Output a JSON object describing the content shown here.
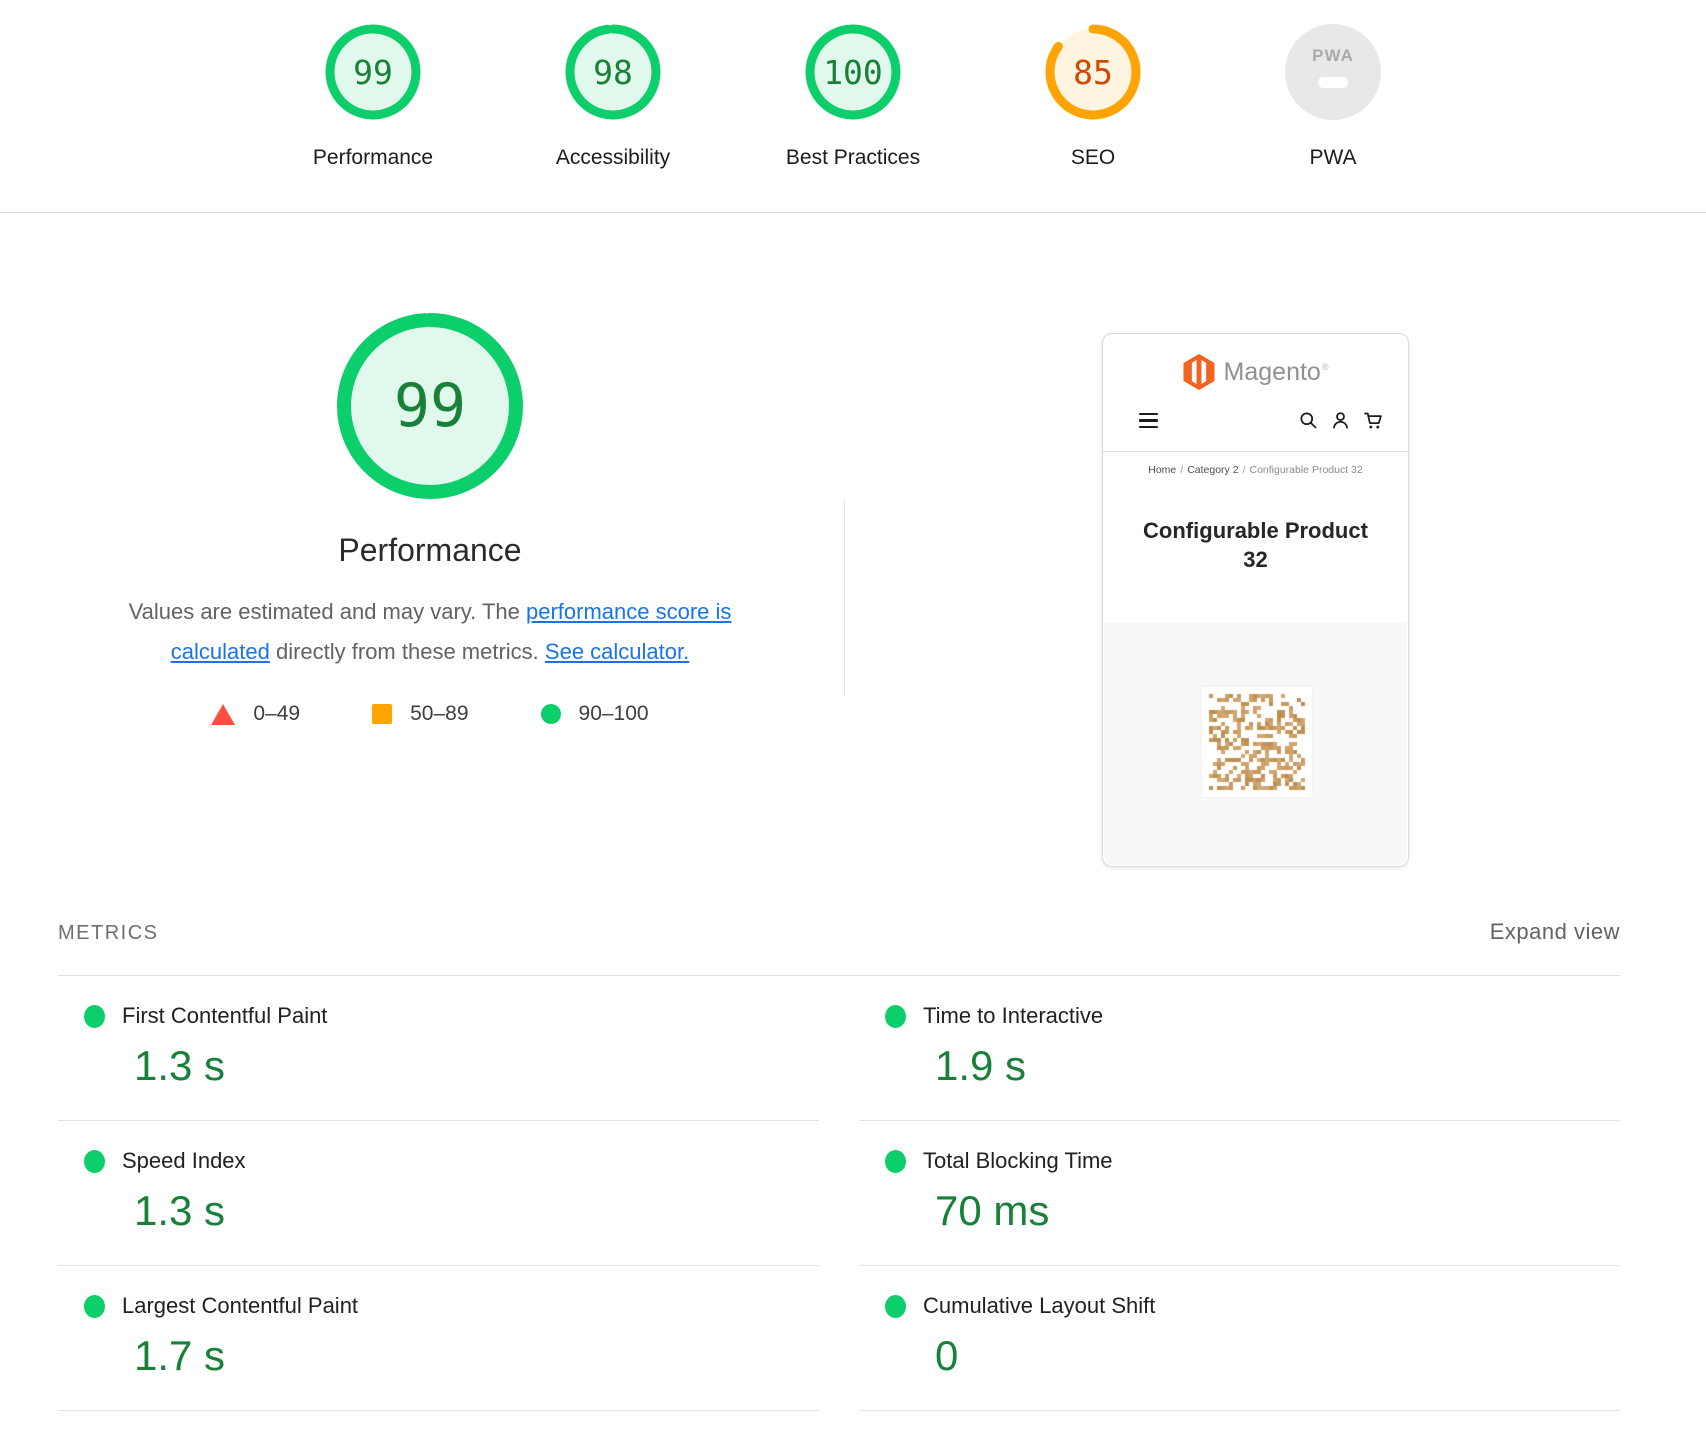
{
  "colors": {
    "pass": "#0cce6b",
    "pass_text": "#188038",
    "average": "#ffa400",
    "average_text": "#d04900",
    "fail": "#ff4e42",
    "link": "#1a73e8",
    "na_badge_bg": "#e8e8e8",
    "na_badge_text": "#a9a9a9",
    "magento_orange": "#f26322",
    "noise_tan": "#c79a5f"
  },
  "scores": [
    {
      "label": "Performance",
      "value": "99",
      "rating": "pass"
    },
    {
      "label": "Accessibility",
      "value": "98",
      "rating": "pass"
    },
    {
      "label": "Best Practices",
      "value": "100",
      "rating": "pass"
    },
    {
      "label": "SEO",
      "value": "85",
      "rating": "average"
    },
    {
      "label": "PWA",
      "value": "",
      "rating": "na",
      "badge": "PWA"
    }
  ],
  "summary": {
    "score": "99",
    "rating": "pass",
    "title": "Performance",
    "description": {
      "part1": "Values are estimated and may vary. The ",
      "link1": "performance score is calculated",
      "part2": " directly from these metrics. ",
      "link2": "See calculator."
    },
    "legend": [
      {
        "range": "0–49",
        "shape": "triangle",
        "color": "#ff4e42"
      },
      {
        "range": "50–89",
        "shape": "square",
        "color": "#ffa400"
      },
      {
        "range": "90–100",
        "shape": "circle",
        "color": "#0cce6b"
      }
    ]
  },
  "screenshot": {
    "brand": "Magento",
    "brand_mark": "®",
    "breadcrumb": [
      "Home",
      "Category 2",
      "Configurable Product 32"
    ],
    "breadcrumb_sep": "/",
    "title": "Configurable Product 32"
  },
  "metrics": {
    "heading": "METRICS",
    "expand_label": "Expand view",
    "left": [
      {
        "name": "First Contentful Paint",
        "value": "1.3 s",
        "rating": "pass"
      },
      {
        "name": "Speed Index",
        "value": "1.3 s",
        "rating": "pass"
      },
      {
        "name": "Largest Contentful Paint",
        "value": "1.7 s",
        "rating": "pass"
      }
    ],
    "right": [
      {
        "name": "Time to Interactive",
        "value": "1.9 s",
        "rating": "pass"
      },
      {
        "name": "Total Blocking Time",
        "value": "70 ms",
        "rating": "pass"
      },
      {
        "name": "Cumulative Layout Shift",
        "value": "0",
        "rating": "pass"
      }
    ]
  }
}
